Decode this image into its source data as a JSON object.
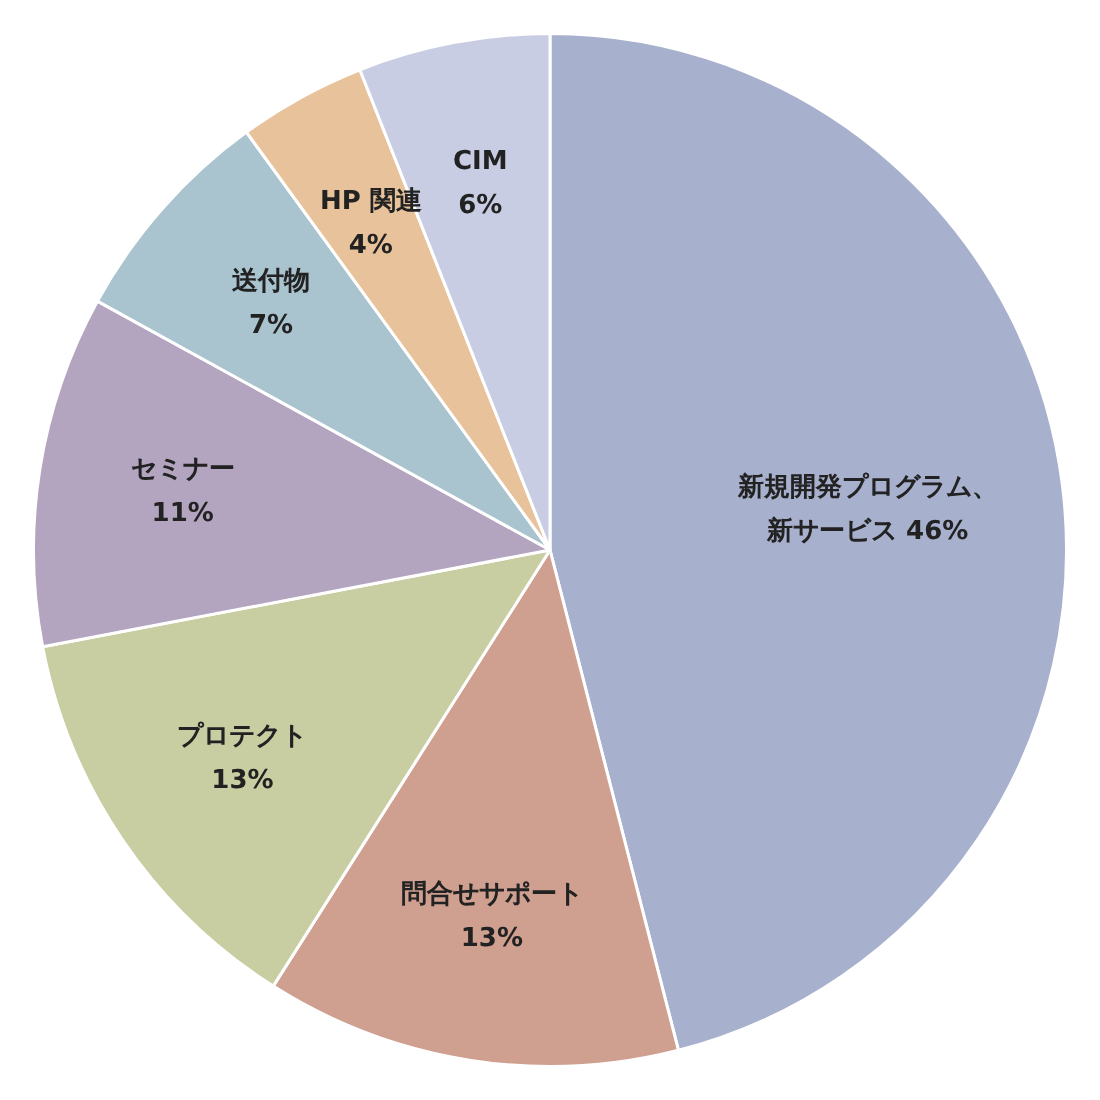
{
  "chart_data": {
    "type": "pie",
    "categories": [
      "新規開発プログラム、新サービス",
      "問合せサポート",
      "プロテクト",
      "セミナー",
      "送付物",
      "HP 関連",
      "CIM"
    ],
    "value_labels": [
      "46%",
      "13%",
      "13%",
      "11%",
      "7%",
      "4%",
      "6%"
    ],
    "values": [
      46,
      13,
      13,
      11,
      7,
      4,
      6
    ],
    "colors": [
      "#a7b0cd",
      "#cf9f90",
      "#c8cda2",
      "#b3a4bf",
      "#a9c3cf",
      "#e8c29b",
      "#c8cde3"
    ],
    "data_labels": true,
    "legend": false
  }
}
